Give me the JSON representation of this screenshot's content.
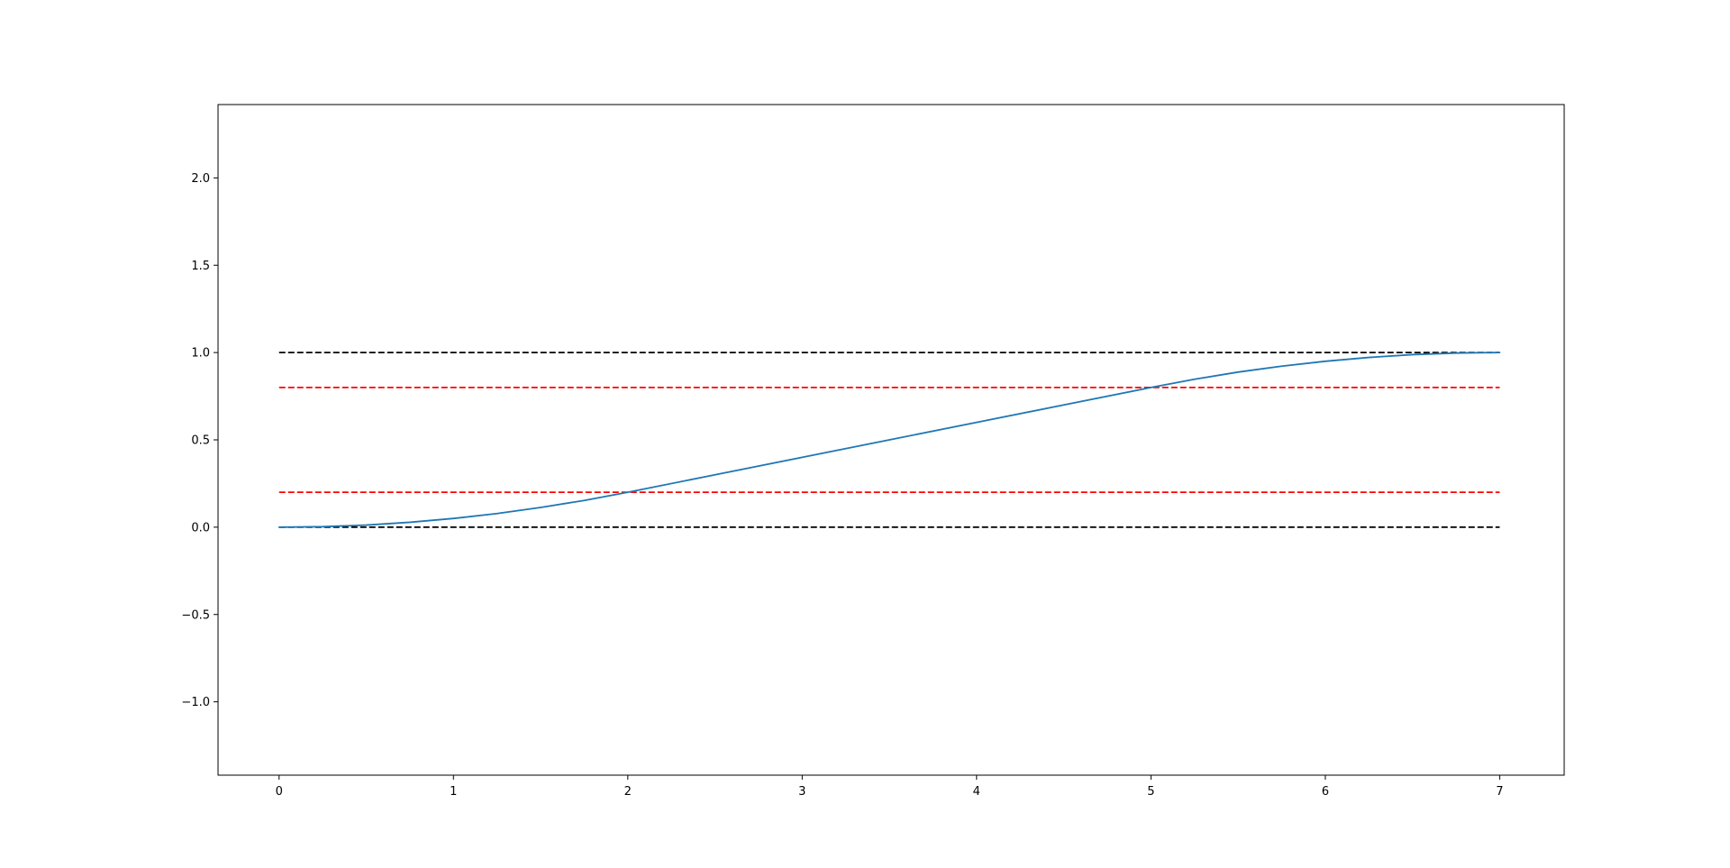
{
  "chart_data": {
    "type": "line",
    "title": "",
    "xlabel": "",
    "ylabel": "",
    "xlim": [
      -0.35,
      7.37
    ],
    "ylim": [
      -1.42,
      2.42
    ],
    "x_ticks": [
      0,
      1,
      2,
      3,
      4,
      5,
      6,
      7
    ],
    "x_tick_labels": [
      "0",
      "1",
      "2",
      "3",
      "4",
      "5",
      "6",
      "7"
    ],
    "y_ticks": [
      -1.0,
      -0.5,
      0.0,
      0.5,
      1.0,
      1.5,
      2.0
    ],
    "y_tick_labels": [
      "−1.0",
      "−0.5",
      "0.0",
      "0.5",
      "1.0",
      "1.5",
      "2.0"
    ],
    "grid": false,
    "legend": "none",
    "series": [
      {
        "color": "#1f77b4",
        "style": "solid",
        "x": [
          0,
          0.25,
          0.5,
          0.75,
          1.0,
          1.25,
          1.5,
          1.75,
          2.0,
          2.5,
          3.0,
          3.5,
          4.0,
          4.5,
          5.0,
          5.25,
          5.5,
          5.75,
          6.0,
          6.25,
          6.5,
          6.75,
          7.0
        ],
        "y": [
          0.0,
          0.003,
          0.012,
          0.028,
          0.05,
          0.078,
          0.113,
          0.153,
          0.2,
          0.3,
          0.4,
          0.5,
          0.6,
          0.7,
          0.8,
          0.847,
          0.888,
          0.922,
          0.95,
          0.972,
          0.988,
          0.997,
          1.0
        ]
      }
    ],
    "reference_lines": [
      {
        "y": 1.0,
        "x_range": [
          0,
          7
        ],
        "color": "#000000",
        "style": "dashed"
      },
      {
        "y": 0.8,
        "x_range": [
          0,
          7
        ],
        "color": "#ff0000",
        "style": "dashed"
      },
      {
        "y": 0.2,
        "x_range": [
          0,
          7
        ],
        "color": "#ff0000",
        "style": "dashed"
      },
      {
        "y": 0.0,
        "x_range": [
          0,
          7
        ],
        "color": "#000000",
        "style": "dashed"
      }
    ]
  }
}
